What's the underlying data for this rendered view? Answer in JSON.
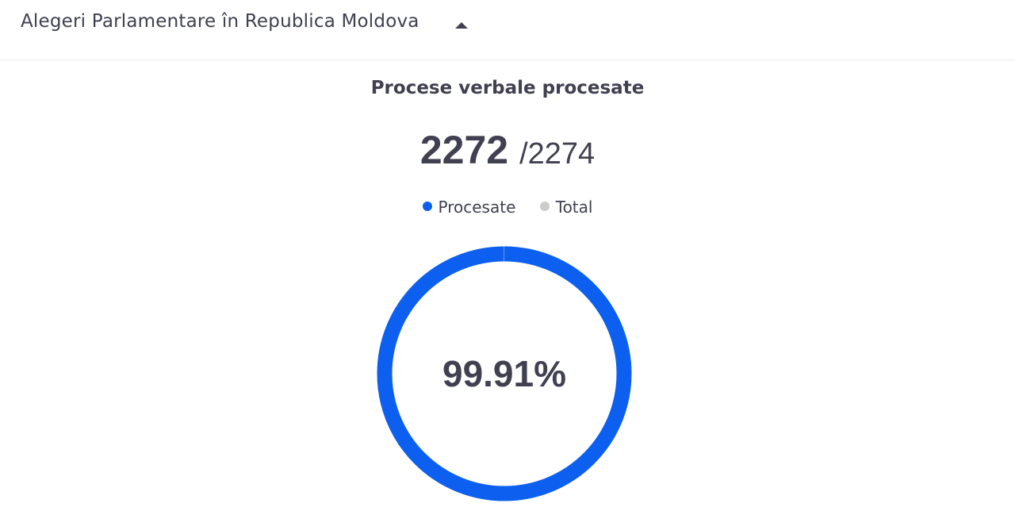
{
  "header": {
    "title": "Alegeri Parlamentare în Republica Moldova",
    "toggle_icon": "caret-up-icon"
  },
  "section": {
    "title": "Procese verbale procesate"
  },
  "counter": {
    "processed": "2272",
    "total": "/2274"
  },
  "legend": {
    "items": [
      {
        "label": "Procesate",
        "color": "#0d60ef"
      },
      {
        "label": "Total",
        "color": "#cccccc"
      }
    ]
  },
  "chart_data": {
    "type": "pie",
    "variant": "donut",
    "center_label": "99.91%",
    "series": [
      {
        "name": "Procesate",
        "value": 2272,
        "color": "#0d60ef"
      },
      {
        "name": "Total",
        "value": 2,
        "color": "#cccccc"
      }
    ]
  }
}
